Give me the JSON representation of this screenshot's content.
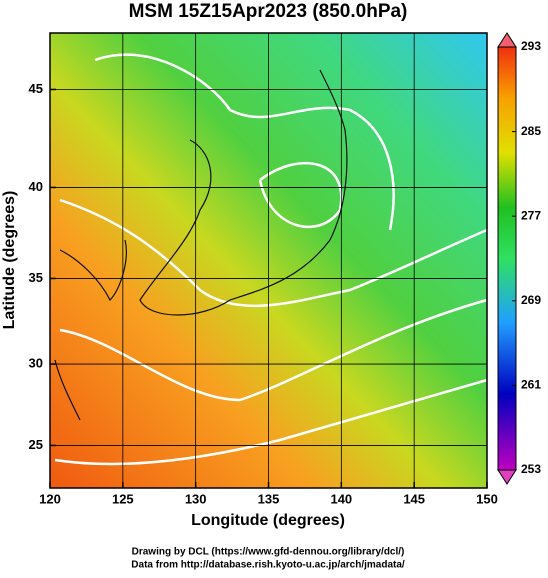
{
  "chart_data": {
    "type": "map",
    "title": "MSM 15Z15Apr2023 (850.0hPa)",
    "x_label": "Longitude (degrees)",
    "y_label": "Latitude (degrees)",
    "xlim": [
      120,
      150
    ],
    "xticks": [
      120,
      125,
      130,
      135,
      140,
      145,
      150
    ],
    "ylim": [
      22.3,
      47.7
    ],
    "yticks": [
      25,
      30,
      35,
      40,
      45
    ],
    "y_scale": "mercator",
    "grid": true,
    "colorbar": {
      "lim": [
        253,
        293
      ],
      "ticks": [
        253,
        261,
        269,
        277,
        285,
        293
      ]
    },
    "credits": [
      "Drawing by DCL (https://www.gfd-dennou.org/library/dcl/)",
      "Data from http://database.rish.kyoto-u.ac.jp/arch/jmadata/"
    ]
  }
}
